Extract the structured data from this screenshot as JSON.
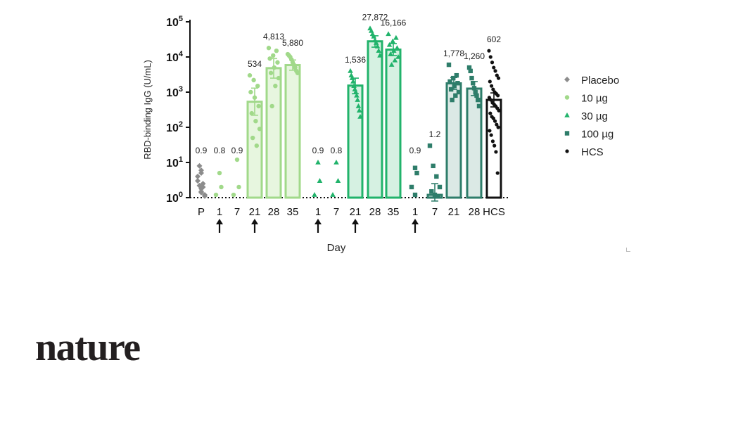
{
  "chart_data": {
    "type": "bar",
    "title": "",
    "ylabel": "RBD-binding IgG (U/mL)",
    "xlabel": "Day",
    "y_scale": "log10",
    "ylim": [
      1,
      100000
    ],
    "y_ticks": [
      {
        "base": "10",
        "exp": "0",
        "value": 1
      },
      {
        "base": "10",
        "exp": "1",
        "value": 10
      },
      {
        "base": "10",
        "exp": "2",
        "value": 100
      },
      {
        "base": "10",
        "exp": "3",
        "value": 1000
      },
      {
        "base": "10",
        "exp": "4",
        "value": 10000
      },
      {
        "base": "10",
        "exp": "5",
        "value": 100000
      }
    ],
    "legend_position": "right",
    "colors": {
      "Placebo": "#8c8c8c",
      "10 µg": "#a1d98a",
      "30 µg": "#21b36b",
      "100 µg": "#2e7d6a",
      "HCS": "#111111"
    },
    "legend": [
      {
        "name": "Placebo",
        "marker": "diamond"
      },
      {
        "name": "10 µg",
        "marker": "circle"
      },
      {
        "name": "30 µg",
        "marker": "triangle"
      },
      {
        "name": "100 µg",
        "marker": "square"
      },
      {
        "name": "HCS",
        "marker": "dot"
      }
    ],
    "dose_arrows": [
      "1",
      "21",
      "1",
      "21",
      "1"
    ],
    "groups": [
      {
        "series": "Placebo",
        "day": "P",
        "gmt_label": "0.9",
        "gmt": 0.9,
        "bar": false,
        "marker": "diamond",
        "points": [
          1.5,
          2,
          3,
          5,
          8,
          1.2,
          1.8,
          2.5,
          4,
          1.4,
          2.2,
          1.1,
          6
        ]
      },
      {
        "series": "10 µg",
        "day": "1",
        "gmt_label": "0.8",
        "gmt": 0.8,
        "bar": false,
        "marker": "circle",
        "points": [
          5,
          2,
          1.2
        ]
      },
      {
        "series": "10 µg",
        "day": "7",
        "gmt_label": "0.9",
        "gmt": 0.9,
        "bar": false,
        "marker": "circle",
        "points": [
          12,
          2,
          1.2
        ]
      },
      {
        "series": "10 µg",
        "day": "21",
        "gmt_label": "534",
        "gmt": 534,
        "bar": true,
        "err": [
          220,
          1300
        ],
        "marker": "circle",
        "points": [
          3000,
          2200,
          1500,
          1000,
          700,
          400,
          250,
          150,
          90,
          50,
          30
        ]
      },
      {
        "series": "10 µg",
        "day": "28",
        "gmt_label": "4,813",
        "gmt": 4813,
        "bar": true,
        "err": [
          2500,
          9000
        ],
        "marker": "circle",
        "points": [
          18000,
          15000,
          11000,
          9000,
          7000,
          5000,
          3500,
          2500,
          1500,
          400
        ]
      },
      {
        "series": "10 µg",
        "day": "35",
        "gmt_label": "5,880",
        "gmt": 5880,
        "bar": true,
        "err": [
          4200,
          8200
        ],
        "marker": "circle",
        "points": [
          12000,
          11000,
          10000,
          8500,
          7000,
          6000,
          5000,
          4000,
          3500
        ]
      },
      {
        "series": "30 µg",
        "day": "1",
        "gmt_label": "0.9",
        "gmt": 0.9,
        "bar": false,
        "marker": "triangle",
        "points": [
          10,
          3,
          1.2
        ]
      },
      {
        "series": "30 µg",
        "day": "7",
        "gmt_label": "0.8",
        "gmt": 0.8,
        "bar": false,
        "marker": "triangle",
        "points": [
          10,
          3,
          1.2
        ]
      },
      {
        "series": "30 µg",
        "day": "21",
        "gmt_label": "1,536",
        "gmt": 1536,
        "bar": true,
        "err": [
          900,
          2500
        ],
        "marker": "triangle",
        "points": [
          4000,
          3000,
          2500,
          2000,
          1500,
          1200,
          1000,
          800,
          600,
          400,
          300,
          200
        ]
      },
      {
        "series": "30 µg",
        "day": "28",
        "gmt_label": "27,872",
        "gmt": 27872,
        "bar": true,
        "err": [
          19000,
          40000
        ],
        "marker": "triangle",
        "points": [
          65000,
          55000,
          45000,
          38000,
          30000,
          25000,
          20000,
          15000,
          11000
        ]
      },
      {
        "series": "30 µg",
        "day": "35",
        "gmt_label": "16,166",
        "gmt": 16166,
        "bar": true,
        "err": [
          11000,
          24000
        ],
        "marker": "triangle",
        "points": [
          45000,
          35000,
          28000,
          22000,
          18000,
          15000,
          12000,
          10000,
          8000,
          6000
        ]
      },
      {
        "series": "100 µg",
        "day": "1",
        "gmt_label": "0.9",
        "gmt": 0.9,
        "bar": false,
        "marker": "square",
        "points": [
          7,
          5,
          2,
          1.2
        ]
      },
      {
        "series": "100 µg",
        "day": "7",
        "gmt_label": "1.2",
        "gmt": 1.2,
        "bar": true,
        "err": [
          0.8,
          2.5
        ],
        "marker": "square",
        "points": [
          30,
          8,
          4,
          2,
          1.5,
          1.2,
          1.1
        ]
      },
      {
        "series": "100 µg",
        "day": "21",
        "gmt_label": "1,778",
        "gmt": 1778,
        "bar": true,
        "err": [
          1200,
          2600
        ],
        "marker": "square",
        "points": [
          6000,
          3000,
          2500,
          2000,
          1800,
          1500,
          1200,
          1000,
          800,
          600
        ]
      },
      {
        "series": "100 µg",
        "day": "28",
        "gmt_label": "1,260",
        "gmt": 1260,
        "bar": true,
        "err": [
          800,
          2000
        ],
        "marker": "square",
        "points": [
          5000,
          4000,
          2500,
          1800,
          1300,
          1000,
          800,
          600,
          400
        ]
      },
      {
        "series": "HCS",
        "day": "HCS",
        "gmt_label": "602",
        "gmt": 602,
        "bar": true,
        "err": [
          380,
          950
        ],
        "marker": "dot",
        "points": [
          15000,
          10000,
          7000,
          5000,
          4000,
          3000,
          2500,
          2000,
          1500,
          1200,
          1000,
          900,
          800,
          700,
          600,
          500,
          450,
          400,
          350,
          300,
          250,
          200,
          180,
          150,
          120,
          100,
          80,
          60,
          40,
          30,
          20,
          5
        ]
      }
    ]
  },
  "brand": {
    "wordmark": "nature"
  }
}
